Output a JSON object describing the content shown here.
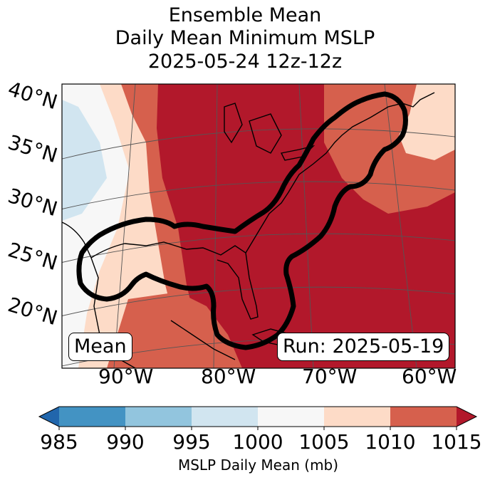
{
  "title": {
    "line1": "Ensemble Mean",
    "line2": "Daily Mean Minimum MSLP",
    "line3": "2025-05-24 12z-12z"
  },
  "map": {
    "lat_labels": [
      "40°N",
      "35°N",
      "30°N",
      "25°N",
      "20°N"
    ],
    "lon_labels": [
      "90°W",
      "80°W",
      "70°W",
      "60°W"
    ],
    "mean_label": "Mean",
    "run_label": "Run: 2025-05-19",
    "shading_levels_mb": [
      985,
      990,
      995,
      1000,
      1005,
      1010,
      1015
    ]
  },
  "colorbar": {
    "ticks": [
      "985",
      "990",
      "995",
      "1000",
      "1005",
      "1010",
      "1015"
    ],
    "colors": [
      "#2166ac",
      "#4393c3",
      "#92c5de",
      "#d1e5f0",
      "#f7f7f7",
      "#fddbc7",
      "#d6604d",
      "#b2182b"
    ],
    "label": "MSLP Daily Mean (mb)"
  }
}
